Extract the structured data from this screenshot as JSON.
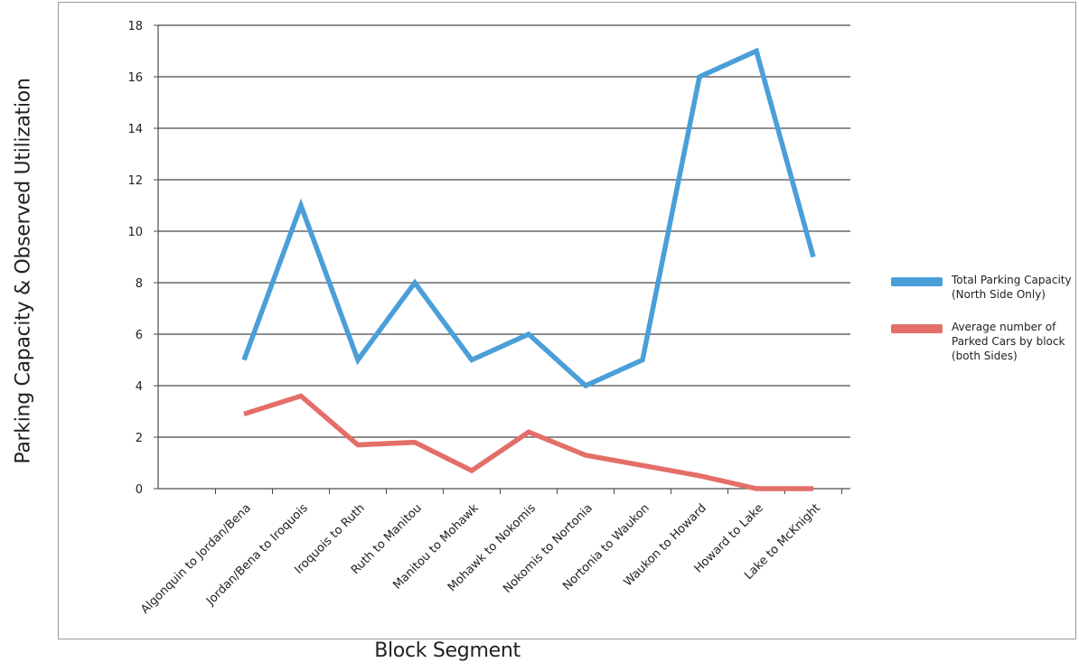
{
  "chart_data": {
    "type": "line",
    "title": "",
    "xlabel": "Block Segment",
    "ylabel": "Parking Capacity & Observed Utilization",
    "ylim": [
      0,
      18
    ],
    "yticks": [
      "0",
      "2",
      "4",
      "6",
      "8",
      "10",
      "12",
      "14",
      "16",
      "18"
    ],
    "grid": true,
    "legend_position": "right",
    "categories": [
      "Algonquin to Jordan/Bena",
      "Jordan/Bena to Iroquois",
      "Iroquois to Ruth",
      "Ruth to Manitou",
      "Manitou to Mohawk",
      "Mohawk to Nokomis",
      "Nokomis to Nortonia",
      "Nortonia to Waukon",
      "Waukon to Howard",
      "Howard to Lake",
      "Lake to McKnight"
    ],
    "series": [
      {
        "name": "Total Parking Capacity\n(North Side Only)",
        "color": "#4a9fd8",
        "values": [
          5,
          11,
          5,
          8,
          5,
          6,
          4,
          5,
          16,
          17,
          9
        ]
      },
      {
        "name": "Average number of\nParked Cars by block\n(both Sides)",
        "color": "#e36f68",
        "values": [
          2.9,
          3.6,
          1.7,
          1.8,
          0.7,
          2.2,
          1.3,
          0.9,
          0.5,
          0.0,
          0.0
        ]
      }
    ]
  }
}
